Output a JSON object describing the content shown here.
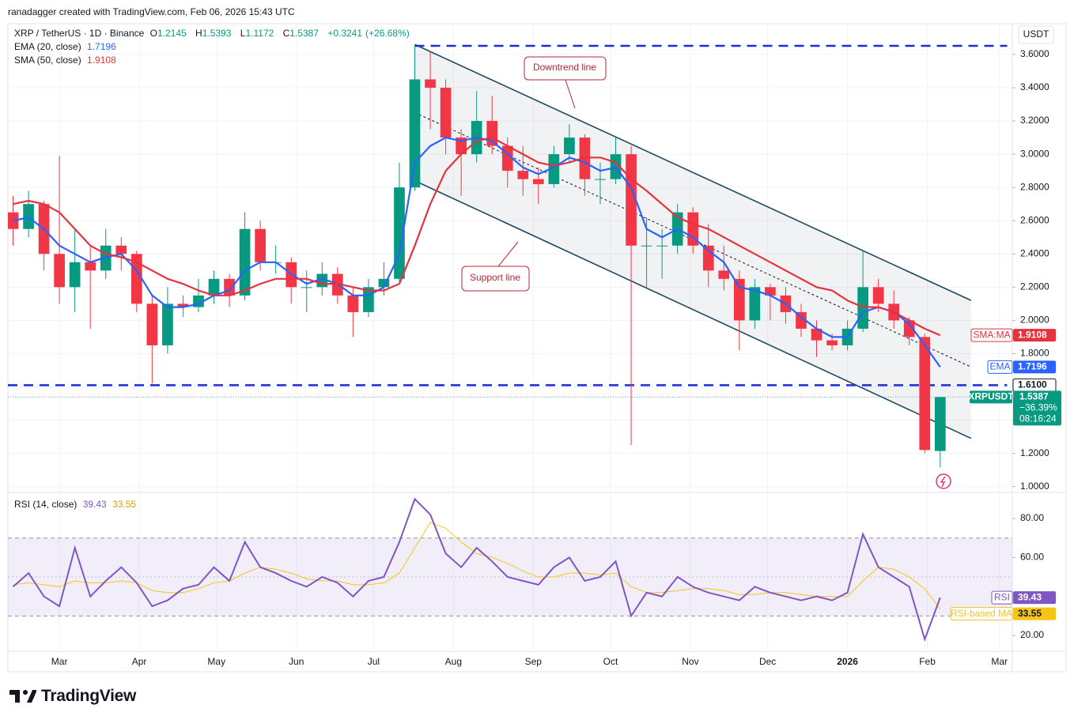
{
  "attribution": "ranadagger created with TradingView.com, Feb 06, 2026 15:43 UTC",
  "logo": "TradingView",
  "chart_data": {
    "type": "candlestick",
    "symbol": "XRP / TetherUS · 1D · Binance",
    "currency": "USDT",
    "ohlc_keys": [
      "O",
      "H",
      "L",
      "C"
    ],
    "change": {
      "value": 0.3241,
      "label": "+0.3241"
    },
    "change_pct": {
      "value": 26.68,
      "label": "(+26.68%)"
    },
    "up_color": "#089981",
    "down_color": "#f23645",
    "xlim": [
      -1,
      389
    ],
    "xticks": [
      {
        "value": 19,
        "label": "Mar"
      },
      {
        "value": 50,
        "label": "Apr"
      },
      {
        "value": 80,
        "label": "May"
      },
      {
        "value": 111,
        "label": "Jun"
      },
      {
        "value": 141,
        "label": "Jul"
      },
      {
        "value": 172,
        "label": "Aug"
      },
      {
        "value": 203,
        "label": "Sep"
      },
      {
        "value": 233,
        "label": "Oct"
      },
      {
        "value": 264,
        "label": "Nov"
      },
      {
        "value": 294,
        "label": "Dec"
      },
      {
        "value": 325,
        "label": "2026"
      },
      {
        "value": 356,
        "label": "Feb"
      },
      {
        "value": 384,
        "label": "Mar"
      }
    ],
    "ylim": [
      0.97,
      3.785
    ],
    "yticks": [
      {
        "value": 1.0,
        "label": "1.0000"
      },
      {
        "value": 1.2,
        "label": "1.2000"
      },
      {
        "value": 1.4,
        "label": "1.4000"
      },
      {
        "value": 1.6,
        "label": "1.6000"
      },
      {
        "value": 1.8,
        "label": "1.8000"
      },
      {
        "value": 2.0,
        "label": "2.0000"
      },
      {
        "value": 2.2,
        "label": "2.2000"
      },
      {
        "value": 2.4,
        "label": "2.4000"
      },
      {
        "value": 2.6,
        "label": "2.6000"
      },
      {
        "value": 2.8,
        "label": "2.8000"
      },
      {
        "value": 3.0,
        "label": "3.0000"
      },
      {
        "value": 3.2,
        "label": "3.2000"
      },
      {
        "value": 3.4,
        "label": "3.4000"
      },
      {
        "value": 3.6,
        "label": "3.6000"
      }
    ],
    "x": [
      1,
      7,
      13,
      19,
      25,
      31,
      37,
      43,
      49,
      55,
      61,
      67,
      73,
      79,
      85,
      91,
      97,
      103,
      109,
      115,
      121,
      127,
      133,
      139,
      145,
      151,
      157,
      163,
      169,
      175,
      181,
      187,
      193,
      199,
      205,
      211,
      217,
      223,
      229,
      235,
      241,
      247,
      253,
      259,
      265,
      271,
      277,
      283,
      289,
      295,
      301,
      307,
      313,
      319,
      325,
      331,
      337,
      343,
      349,
      355,
      361
    ],
    "candles": {
      "open": [
        2.65,
        2.55,
        2.7,
        2.4,
        2.2,
        2.35,
        2.3,
        2.45,
        2.4,
        2.1,
        1.85,
        2.1,
        2.08,
        2.15,
        2.25,
        2.15,
        2.55,
        2.35,
        2.35,
        2.2,
        2.2,
        2.28,
        2.15,
        2.05,
        2.2,
        2.25,
        2.8,
        3.45,
        3.4,
        3.1,
        3.0,
        3.2,
        3.05,
        2.9,
        2.85,
        2.82,
        3.0,
        3.1,
        2.85,
        2.85,
        3.0,
        2.45,
        2.45,
        2.45,
        2.65,
        2.45,
        2.3,
        2.25,
        2.0,
        2.2,
        2.15,
        2.05,
        1.95,
        1.88,
        1.85,
        1.95,
        2.2,
        2.1,
        2.0,
        1.9,
        1.2145
      ],
      "high": [
        2.75,
        2.78,
        2.72,
        2.99,
        2.55,
        2.45,
        2.55,
        2.5,
        2.42,
        2.15,
        2.2,
        2.15,
        2.25,
        2.3,
        2.28,
        2.65,
        2.6,
        2.45,
        2.38,
        2.3,
        2.35,
        2.32,
        2.2,
        2.25,
        2.35,
        2.95,
        3.66,
        3.62,
        3.45,
        3.15,
        3.38,
        3.35,
        3.1,
        3.05,
        2.92,
        3.05,
        3.18,
        3.12,
        2.95,
        3.1,
        3.05,
        2.62,
        2.55,
        2.7,
        2.68,
        2.58,
        2.45,
        2.3,
        2.25,
        2.22,
        2.2,
        2.1,
        2.0,
        1.92,
        2.0,
        2.42,
        2.25,
        2.18,
        2.02,
        1.92,
        1.5393
      ],
      "low": [
        2.45,
        2.5,
        2.3,
        2.1,
        2.05,
        1.95,
        2.25,
        2.3,
        2.05,
        1.62,
        1.8,
        2.02,
        2.05,
        2.1,
        2.08,
        2.12,
        2.3,
        2.28,
        2.1,
        2.05,
        2.15,
        2.1,
        1.9,
        2.02,
        2.15,
        2.22,
        2.78,
        3.15,
        3.0,
        2.75,
        2.95,
        3.0,
        2.8,
        2.75,
        2.7,
        2.8,
        2.95,
        2.75,
        2.7,
        2.82,
        1.25,
        2.2,
        2.25,
        2.4,
        2.4,
        2.2,
        2.18,
        1.82,
        1.95,
        2.0,
        1.98,
        1.9,
        1.78,
        1.82,
        1.82,
        1.93,
        2.05,
        1.95,
        1.85,
        1.2,
        1.1172
      ],
      "close": [
        2.55,
        2.7,
        2.4,
        2.2,
        2.35,
        2.3,
        2.45,
        2.4,
        2.1,
        1.85,
        2.1,
        2.08,
        2.15,
        2.25,
        2.15,
        2.55,
        2.35,
        2.35,
        2.2,
        2.2,
        2.28,
        2.15,
        2.05,
        2.2,
        2.25,
        2.8,
        3.45,
        3.4,
        3.1,
        3.0,
        3.2,
        3.05,
        2.9,
        2.85,
        2.82,
        3.0,
        3.1,
        2.85,
        2.85,
        3.0,
        2.45,
        2.45,
        2.45,
        2.65,
        2.45,
        2.3,
        2.25,
        2.0,
        2.2,
        2.15,
        2.05,
        1.95,
        1.88,
        1.85,
        1.95,
        2.2,
        2.1,
        2.0,
        1.9,
        1.22,
        1.5387
      ]
    },
    "close_tag": {
      "name": "XRPUSDT",
      "pct": {
        "value": -36.39,
        "label": "−36.39%"
      },
      "countdown": "08:16:24"
    },
    "indicators": [
      {
        "name": "EMA (20, close)",
        "tag": "EMA",
        "color": "#2962ff",
        "values": [
          2.6,
          2.62,
          2.55,
          2.45,
          2.4,
          2.35,
          2.38,
          2.4,
          2.3,
          2.15,
          2.08,
          2.08,
          2.1,
          2.15,
          2.18,
          2.3,
          2.35,
          2.35,
          2.28,
          2.22,
          2.25,
          2.22,
          2.15,
          2.15,
          2.2,
          2.4,
          2.95,
          3.05,
          3.1,
          3.08,
          3.1,
          3.08,
          3.0,
          2.92,
          2.88,
          2.92,
          2.98,
          2.95,
          2.9,
          2.92,
          2.8,
          2.55,
          2.5,
          2.55,
          2.5,
          2.42,
          2.35,
          2.2,
          2.18,
          2.15,
          2.1,
          2.02,
          1.95,
          1.9,
          1.9,
          2.05,
          2.08,
          2.05,
          1.98,
          1.85,
          1.7196
        ]
      },
      {
        "name": "SMA (50, close)",
        "tag": "SMA:MA",
        "color": "#e5323e",
        "values": [
          2.7,
          2.72,
          2.7,
          2.65,
          2.55,
          2.45,
          2.4,
          2.38,
          2.35,
          2.3,
          2.25,
          2.22,
          2.18,
          2.15,
          2.15,
          2.18,
          2.22,
          2.25,
          2.25,
          2.25,
          2.22,
          2.22,
          2.2,
          2.18,
          2.18,
          2.22,
          2.45,
          2.7,
          2.9,
          3.0,
          3.08,
          3.1,
          3.05,
          3.0,
          2.95,
          2.93,
          2.95,
          2.98,
          2.98,
          2.95,
          2.85,
          2.78,
          2.7,
          2.62,
          2.58,
          2.55,
          2.5,
          2.45,
          2.4,
          2.35,
          2.3,
          2.25,
          2.2,
          2.18,
          2.12,
          2.08,
          2.08,
          2.05,
          2.0,
          1.95,
          1.9108
        ]
      }
    ],
    "levels": [
      {
        "value": 3.652,
        "x": [
          157,
          387
        ],
        "color": "#1a2ed6"
      },
      {
        "value": {
          "value": 1.61,
          "label": "1.6100"
        },
        "x": [
          -1,
          387
        ],
        "color": "#1a2ed6"
      }
    ],
    "drawings": [
      {
        "label": "Downtrend line",
        "x": [
          157,
          373
        ],
        "y": [
          3.66,
          2.12
        ]
      },
      {
        "label": "Support line",
        "x": [
          157,
          373
        ],
        "y": [
          2.84,
          1.29
        ]
      },
      {
        "x": [
          157,
          373
        ],
        "y": [
          3.25,
          1.72
        ],
        "dashed": true
      }
    ],
    "rsi": {
      "name": "RSI (14, close)",
      "tag": "RSI",
      "color": "#7e57c2",
      "ma_name": "RSI-based MA",
      "ma_color": "#f5c518",
      "ylim": [
        12.7,
        92.6
      ],
      "yticks": [
        {
          "value": 20,
          "label": "20.00"
        },
        {
          "value": 40,
          "label": "40.00"
        },
        {
          "value": 60,
          "label": "60.00"
        },
        {
          "value": 80,
          "label": "80.00"
        }
      ],
      "band": {
        "upper": 70,
        "middle": 50,
        "lower": 30
      },
      "values": [
        45,
        52,
        40,
        35,
        65,
        40,
        48,
        55,
        47,
        35,
        38,
        44,
        46,
        55,
        48,
        68,
        55,
        52,
        48,
        45,
        50,
        47,
        40,
        48,
        50,
        68,
        90,
        82,
        62,
        55,
        65,
        58,
        50,
        48,
        46,
        55,
        60,
        48,
        50,
        58,
        30,
        42,
        40,
        50,
        45,
        42,
        40,
        38,
        45,
        42,
        40,
        38,
        40,
        38,
        42,
        72,
        55,
        50,
        45,
        18,
        39.43
      ],
      "ma_values": [
        46,
        47,
        46,
        45,
        48,
        47,
        47,
        48,
        47,
        43,
        42,
        42,
        44,
        47,
        48,
        52,
        55,
        54,
        52,
        49,
        48,
        48,
        46,
        46,
        47,
        52,
        65,
        78,
        75,
        68,
        62,
        60,
        57,
        53,
        50,
        50,
        52,
        52,
        51,
        52,
        45,
        42,
        42,
        43,
        44,
        44,
        43,
        41,
        41,
        42,
        42,
        41,
        40,
        40,
        40,
        48,
        55,
        54,
        50,
        44,
        33.55
      ]
    }
  }
}
